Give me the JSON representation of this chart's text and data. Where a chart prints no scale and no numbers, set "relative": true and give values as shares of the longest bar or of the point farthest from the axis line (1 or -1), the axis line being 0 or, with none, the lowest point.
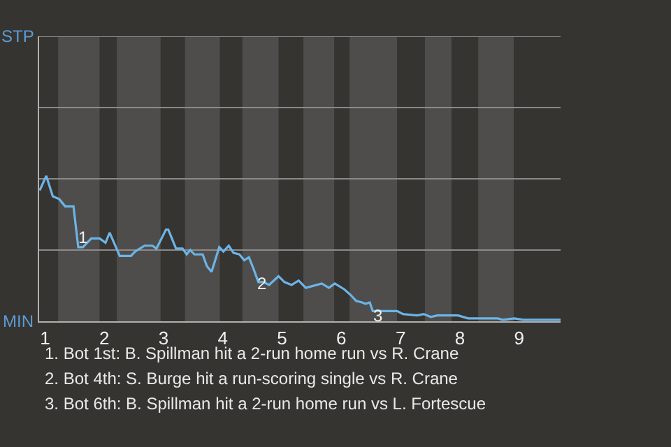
{
  "chart_data": {
    "type": "line",
    "relative": true,
    "x": [
      0.91,
      1.02,
      1.13,
      1.24,
      1.34,
      1.48,
      1.56,
      1.64,
      1.78,
      1.92,
      2.02,
      2.09,
      2.26,
      2.45,
      2.52,
      2.68,
      2.81,
      2.88,
      3.04,
      3.08,
      3.21,
      3.32,
      3.39,
      3.45,
      3.52,
      3.66,
      3.73,
      3.81,
      3.94,
      4.01,
      4.1,
      4.18,
      4.28,
      4.36,
      4.44,
      4.51,
      4.6,
      4.69,
      4.78,
      4.94,
      5.04,
      5.16,
      5.28,
      5.4,
      5.67,
      5.79,
      5.89,
      6.05,
      6.16,
      6.25,
      6.35,
      6.41,
      6.48,
      6.53,
      6.94,
      7.04,
      7.28,
      7.39,
      7.51,
      7.62,
      7.97,
      8.14,
      8.35,
      8.64,
      8.73,
      8.92,
      9.07,
      9.7
    ],
    "series": [
      {
        "color": "#6cb4e8",
        "values": [
          0.9,
          1,
          0.86,
          0.84,
          0.79,
          0.79,
          0.51,
          0.51,
          0.57,
          0.57,
          0.54,
          0.61,
          0.45,
          0.45,
          0.48,
          0.52,
          0.52,
          0.5,
          0.63,
          0.63,
          0.5,
          0.5,
          0.46,
          0.49,
          0.46,
          0.46,
          0.38,
          0.34,
          0.51,
          0.48,
          0.52,
          0.47,
          0.46,
          0.42,
          0.44,
          0.37,
          0.27,
          0.27,
          0.25,
          0.31,
          0.27,
          0.25,
          0.28,
          0.23,
          0.26,
          0.23,
          0.26,
          0.22,
          0.18,
          0.14,
          0.13,
          0.12,
          0.13,
          0.07,
          0.07,
          0.05,
          0.04,
          0.05,
          0.03,
          0.04,
          0.04,
          0.02,
          0.02,
          0.02,
          0.01,
          0.02,
          0.01,
          0.01
        ]
      }
    ],
    "xlim": [
      0.9,
      9.7
    ],
    "xticks": [
      1,
      2,
      3,
      4,
      5,
      6,
      7,
      8,
      9
    ],
    "ref_lines": [
      {
        "axis": "y",
        "value": 0.49,
        "color": "#8a8a8a"
      },
      {
        "axis": "y",
        "value": 0.98,
        "color": "#8a8a8a"
      },
      {
        "axis": "y",
        "value": 1.47,
        "color": "#8a8a8a"
      },
      {
        "axis": "y",
        "value": 1.96,
        "color": "#8a8a8a"
      }
    ],
    "marker": "none",
    "line_style": "solid",
    "bands": [
      {
        "axis": "x",
        "from": 1.22,
        "to": 1.92,
        "color": "#4e4d4b"
      },
      {
        "axis": "x",
        "from": 2.21,
        "to": 2.95,
        "color": "#4e4d4b"
      },
      {
        "axis": "x",
        "from": 3.36,
        "to": 3.95,
        "color": "#4e4d4b"
      },
      {
        "axis": "x",
        "from": 4.33,
        "to": 4.94,
        "color": "#4e4d4b"
      },
      {
        "axis": "x",
        "from": 5.36,
        "to": 5.88,
        "color": "#4e4d4b"
      },
      {
        "axis": "x",
        "from": 6.14,
        "to": 6.94,
        "color": "#4e4d4b"
      },
      {
        "axis": "x",
        "from": 7.41,
        "to": 7.86,
        "color": "#4e4d4b"
      },
      {
        "axis": "x",
        "from": 8.31,
        "to": 8.91,
        "color": "#4e4d4b"
      }
    ],
    "annotations": [
      "STP",
      "MIN",
      {
        "text": "1",
        "x": 1.64,
        "y": 0.58
      },
      {
        "text": "2",
        "x": 4.67,
        "y": 0.26
      },
      {
        "text": "3",
        "x": 6.61,
        "y": 0.04
      },
      "1. Bot 1st: B. Spillman hit a 2-run home run vs R. Crane",
      "2. Bot 4th: S. Burge hit a run-scoring single vs R. Crane",
      "3. Bot 6th: B. Spillman hit a 2-run home run vs L. Fortescue"
    ]
  }
}
